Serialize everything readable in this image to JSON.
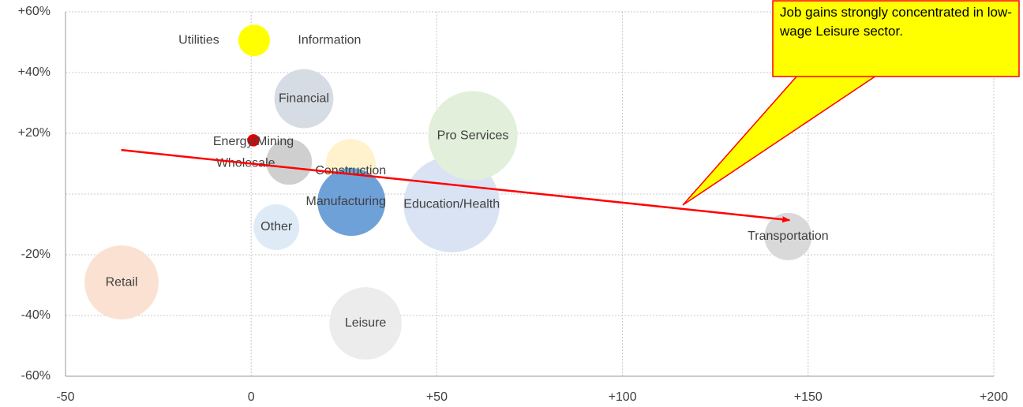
{
  "chart_data": {
    "type": "bubble",
    "xlim": [
      -50,
      200
    ],
    "xticks": [
      -50,
      0,
      {
        "value": 50,
        "label": "+50"
      },
      {
        "value": 100,
        "label": "+100"
      },
      {
        "value": 150,
        "label": "+150"
      },
      {
        "value": 200,
        "label": "+200"
      }
    ],
    "ylim": [
      -60,
      60
    ],
    "yticks": [
      {
        "value": -60,
        "label": "-60%"
      },
      {
        "value": -40,
        "label": "-40%"
      },
      {
        "value": -20,
        "label": "-20%"
      },
      {
        "value": 20,
        "label": "+20%"
      },
      {
        "value": 40,
        "label": "+40%"
      },
      {
        "value": 60,
        "label": "+60%"
      }
    ],
    "grid": true,
    "series": [
      {
        "name": "Education/Health",
        "color": "#dae3f3",
        "x": [
          54
        ],
        "values": [
          -3.4
        ],
        "sizes": [
          37
        ]
      },
      {
        "name": "Pro Services",
        "color": "#e2efda",
        "x": [
          59.7
        ],
        "values": [
          19.2
        ],
        "sizes": [
          32
        ]
      },
      {
        "name": "Retail",
        "color": "#fbe1d2",
        "x": [
          -34.9
        ],
        "values": [
          -29.1
        ],
        "sizes": [
          22
        ]
      },
      {
        "name": "Leisure",
        "color": "#ececec",
        "x": [
          30.8
        ],
        "values": [
          -42.6
        ],
        "sizes": [
          21
        ]
      },
      {
        "name": "Financial",
        "color": "#d6dce4",
        "x": [
          14.2
        ],
        "values": [
          31.4
        ],
        "sizes": [
          14
        ]
      },
      {
        "name": "Construction",
        "color": "#fff2cc",
        "x": [
          26.8
        ],
        "values": [
          9.9
        ],
        "sizes": [
          10
        ]
      },
      {
        "name": "Manufacturing",
        "color": "#6fa1d9",
        "x": [
          27
        ],
        "values": [
          -2.6
        ],
        "sizes": [
          18.5
        ]
      },
      {
        "name": "Transportation",
        "color": "#d9d9d9",
        "x": [
          144.6
        ],
        "values": [
          -14
        ],
        "sizes": [
          9
        ]
      },
      {
        "name": "Wholesale",
        "color": "#cfcfcf",
        "x": [
          10.2
        ],
        "values": [
          10.6
        ],
        "sizes": [
          8.4
        ]
      },
      {
        "name": "Other",
        "color": "#deebf7",
        "x": [
          6.8
        ],
        "values": [
          -10.9
        ],
        "sizes": [
          8.4
        ]
      },
      {
        "name": "Utilities",
        "color": "#ffff00",
        "x": [
          0.8
        ],
        "values": [
          50.6
        ],
        "sizes": [
          4
        ]
      },
      {
        "name": "Information",
        "color": "#ffff00",
        "x": [
          0.9
        ],
        "values": [
          50.6
        ],
        "sizes": [
          3
        ]
      },
      {
        "name": "Energy/Mining",
        "color": "#e00000",
        "x": [
          0.6
        ],
        "values": [
          17.7
        ],
        "sizes": [
          0.6
        ]
      }
    ],
    "trend_line": {
      "color": "#ff0000",
      "x": [
        -35,
        145
      ],
      "values": [
        14.5,
        -8.6
      ]
    },
    "annotation": "Job gains strongly concentrated in low-wage Leisure sector."
  }
}
